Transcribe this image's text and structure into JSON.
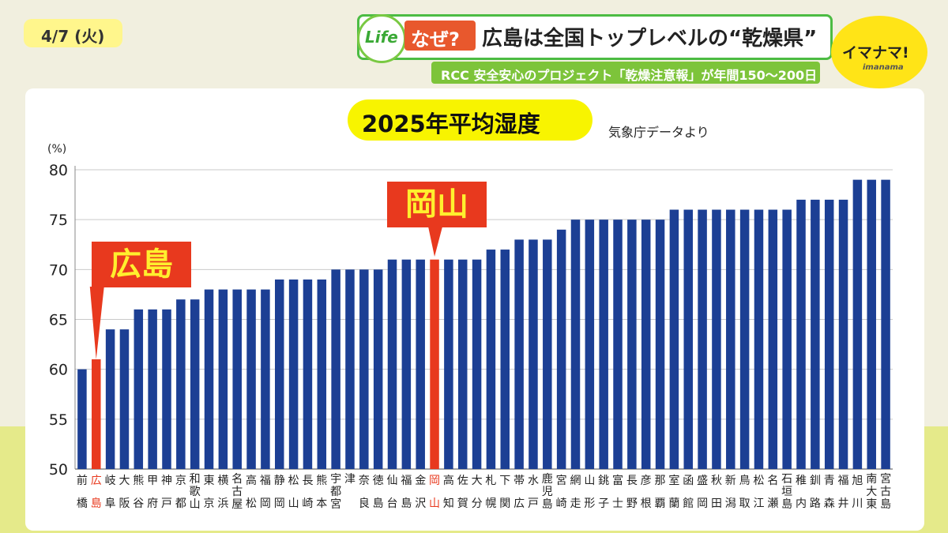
{
  "date": "4/7 (火)",
  "banner": {
    "life_logo": "Life",
    "tag": "なぜ?",
    "headline": "広島は全国トップレベルの“乾燥県”",
    "subline": "RCC 安全安心のプロジェクト「乾燥注意報」が年間150〜200日"
  },
  "station_logo": {
    "main": "イマナマ!",
    "sub": "imanama"
  },
  "chart_data": {
    "type": "bar",
    "title": "2025年平均湿度",
    "source": "気象庁データより",
    "ylabel": "(%)",
    "ylim": [
      50,
      80
    ],
    "yticks": [
      50,
      55,
      60,
      65,
      70,
      75,
      80
    ],
    "categories": [
      "前橋",
      "広島",
      "岐阜",
      "大阪",
      "熊谷",
      "甲府",
      "神戸",
      "京都",
      "和歌山",
      "東京",
      "横浜",
      "名古屋",
      "高松",
      "福岡",
      "静岡",
      "松山",
      "長崎",
      "熊本",
      "宇都宮",
      "津",
      "奈良",
      "徳島",
      "仙台",
      "福島",
      "金沢",
      "岡山",
      "高知",
      "佐賀",
      "大分",
      "札幌",
      "下関",
      "帯広",
      "水戸",
      "鹿児島",
      "宮崎",
      "網走",
      "山形",
      "銚子",
      "富士",
      "長野",
      "彦根",
      "那覇",
      "室蘭",
      "函館",
      "盛岡",
      "秋田",
      "新潟",
      "鳥取",
      "松江",
      "名瀬",
      "石垣島",
      "稚内",
      "釧路",
      "青森",
      "福井",
      "旭川",
      "南大東",
      "宮古島"
    ],
    "values": [
      60,
      61,
      64,
      64,
      66,
      66,
      66,
      67,
      67,
      68,
      68,
      68,
      68,
      68,
      69,
      69,
      69,
      69,
      70,
      70,
      70,
      70,
      71,
      71,
      71,
      71,
      71,
      71,
      71,
      72,
      72,
      73,
      73,
      73,
      74,
      75,
      75,
      75,
      75,
      75,
      75,
      75,
      76,
      76,
      76,
      76,
      76,
      76,
      76,
      76,
      76,
      77,
      77,
      77,
      77,
      79,
      79,
      79
    ],
    "highlight": [
      "広島",
      "岡山"
    ],
    "colors": {
      "bar": "#1c3f94",
      "highlight": "#e8391e",
      "label_highlight": "#e8391e"
    },
    "callouts": [
      {
        "label": "広島",
        "category": "広島"
      },
      {
        "label": "岡山",
        "category": "岡山"
      }
    ]
  }
}
